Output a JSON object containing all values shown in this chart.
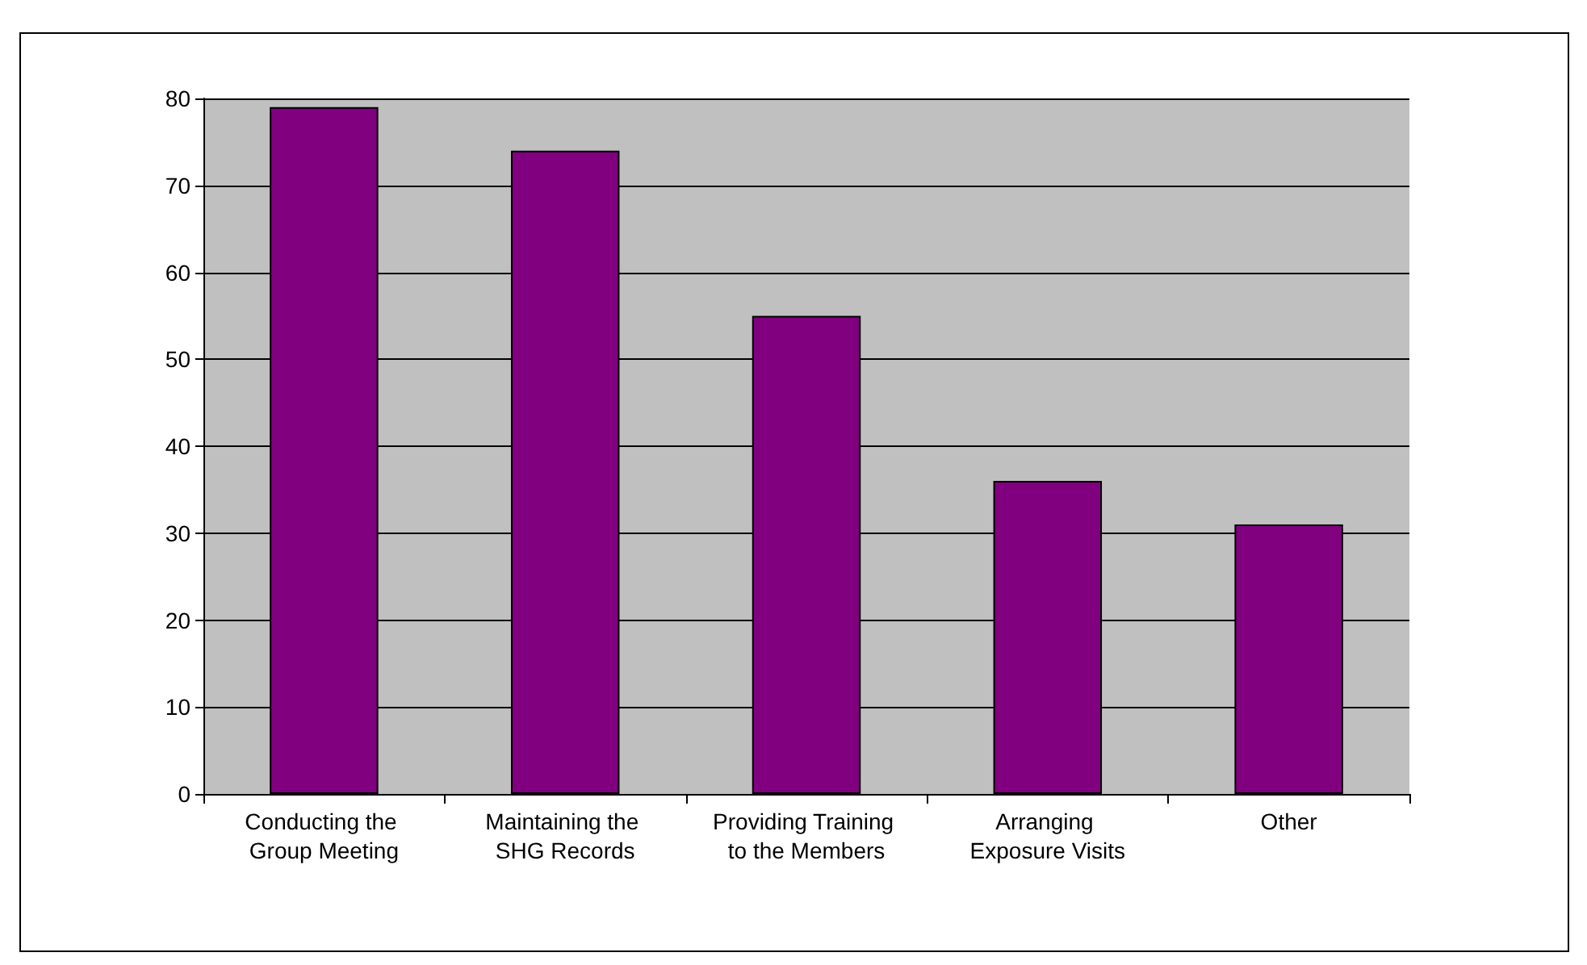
{
  "chart_data": {
    "type": "bar",
    "categories": [
      "Conducting the Group Meeting",
      "Maintaining the SHG Records",
      "Providing Training to the Members",
      "Arranging Exposure Visits",
      "Other"
    ],
    "values": [
      79,
      74,
      55,
      36,
      31
    ],
    "color": "#800080",
    "ylim": [
      0,
      80
    ],
    "yticks": [
      0,
      10,
      20,
      30,
      40,
      50,
      60,
      70,
      80
    ],
    "grid": "y"
  }
}
